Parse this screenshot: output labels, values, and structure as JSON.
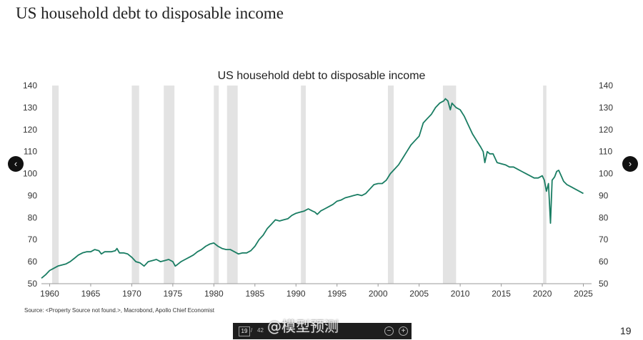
{
  "slide": {
    "title": "US household debt to disposable income",
    "page_number": "19",
    "source": "Source: <Property Source not found.>, Macrobond, Apollo Chief Economist"
  },
  "nav": {
    "prev_label": "‹",
    "next_label": "›"
  },
  "toolbar": {
    "current_page": "19",
    "separator": "/",
    "total_pages": "42",
    "zoom_out": "−",
    "zoom_in": "+"
  },
  "watermark": "@模型预测",
  "colors": {
    "line": "#1a7d63",
    "recession": "#e3e3e3"
  },
  "chart_data": {
    "type": "line",
    "title": "US household debt to disposable income",
    "xlabel": "",
    "ylabel": "",
    "xlim": [
      1959,
      2026
    ],
    "ylim": [
      50,
      140
    ],
    "yticks": [
      "50",
      "60",
      "70",
      "80",
      "90",
      "100",
      "110",
      "120",
      "130",
      "140"
    ],
    "xticks": [
      "1960",
      "1965",
      "1970",
      "1975",
      "1980",
      "1985",
      "1990",
      "1995",
      "2000",
      "2005",
      "2010",
      "2015",
      "2020",
      "2025"
    ],
    "grid": false,
    "dual_y_axis": true,
    "recessions": [
      [
        1960.3,
        1961.1
      ],
      [
        1970.0,
        1970.9
      ],
      [
        1973.9,
        1975.2
      ],
      [
        1980.0,
        1980.6
      ],
      [
        1981.6,
        1982.9
      ],
      [
        1990.6,
        1991.2
      ],
      [
        2001.2,
        2001.9
      ],
      [
        2007.9,
        2009.5
      ],
      [
        2020.1,
        2020.5
      ]
    ],
    "series": [
      {
        "x": [
          1959.0,
          1959.5,
          1960.0,
          1960.5,
          1961.0,
          1961.5,
          1962.0,
          1962.5,
          1963.0,
          1963.5,
          1964.0,
          1964.5,
          1965.0,
          1965.5,
          1966.0,
          1966.3,
          1966.7,
          1967.0,
          1967.5,
          1968.0,
          1968.2,
          1968.5,
          1969.0,
          1969.5,
          1970.0,
          1970.5,
          1971.0,
          1971.5,
          1972.0,
          1972.5,
          1973.0,
          1973.5,
          1974.0,
          1974.5,
          1975.0,
          1975.3,
          1975.5,
          1976.0,
          1976.5,
          1977.0,
          1977.5,
          1978.0,
          1978.5,
          1979.0,
          1979.5,
          1980.0,
          1980.5,
          1981.0,
          1981.5,
          1982.0,
          1982.5,
          1983.0,
          1983.5,
          1984.0,
          1984.5,
          1985.0,
          1985.5,
          1986.0,
          1986.5,
          1987.0,
          1987.5,
          1988.0,
          1988.5,
          1989.0,
          1989.5,
          1990.0,
          1990.5,
          1991.0,
          1991.5,
          1992.0,
          1992.3,
          1992.6,
          1993.0,
          1993.5,
          1994.0,
          1994.5,
          1995.0,
          1995.5,
          1996.0,
          1996.5,
          1997.0,
          1997.5,
          1998.0,
          1998.5,
          1999.0,
          1999.5,
          2000.0,
          2000.5,
          2001.0,
          2001.5,
          2002.0,
          2002.5,
          2003.0,
          2003.5,
          2004.0,
          2004.5,
          2005.0,
          2005.5,
          2006.0,
          2006.5,
          2007.0,
          2007.5,
          2008.0,
          2008.2,
          2008.5,
          2008.8,
          2009.0,
          2009.5,
          2010.0,
          2010.5,
          2011.0,
          2011.5,
          2012.0,
          2012.5,
          2012.8,
          2013.0,
          2013.3,
          2013.6,
          2014.0,
          2014.5,
          2015.0,
          2015.5,
          2016.0,
          2016.5,
          2017.0,
          2017.5,
          2018.0,
          2018.5,
          2019.0,
          2019.5,
          2020.0,
          2020.25,
          2020.5,
          2020.75,
          2021.0,
          2021.2,
          2021.5,
          2021.75,
          2022.0,
          2022.3,
          2022.6,
          2023.0,
          2023.5,
          2024.0,
          2024.5,
          2025.0
        ],
        "y": [
          52.5,
          54,
          56,
          57,
          58,
          58.5,
          59,
          60,
          61.5,
          63,
          64,
          64.5,
          64.5,
          65.5,
          65,
          63.5,
          64.5,
          64.5,
          64.5,
          65,
          66,
          64,
          64,
          63.5,
          62,
          60,
          59.5,
          58,
          60,
          60.5,
          61,
          60,
          60.5,
          61,
          60,
          58,
          58.5,
          60,
          61,
          62,
          63,
          64.5,
          65.5,
          67,
          68,
          68.5,
          67,
          66,
          65.5,
          65.5,
          64.5,
          63.5,
          64,
          64,
          65,
          67,
          70,
          72,
          75,
          77,
          79,
          78.5,
          79,
          79.5,
          81,
          82,
          82.5,
          83,
          84,
          83,
          82.5,
          81.5,
          83,
          84,
          85,
          86,
          87.5,
          88,
          89,
          89.5,
          90,
          90.5,
          90,
          91,
          93,
          95,
          95.5,
          95.5,
          97,
          100,
          102,
          104,
          107,
          110,
          113,
          115,
          117,
          123,
          125,
          127,
          130,
          132,
          133,
          134,
          133,
          129,
          132,
          130,
          129,
          126,
          122,
          118,
          115,
          112,
          110,
          105,
          110,
          109,
          109,
          105,
          104.5,
          104,
          103,
          103,
          102,
          101,
          100,
          99,
          98,
          98,
          99,
          97,
          92,
          95.5,
          77.5,
          97,
          98.5,
          101,
          101.5,
          99,
          96.5,
          95,
          94,
          93,
          92,
          91
        ]
      }
    ]
  }
}
